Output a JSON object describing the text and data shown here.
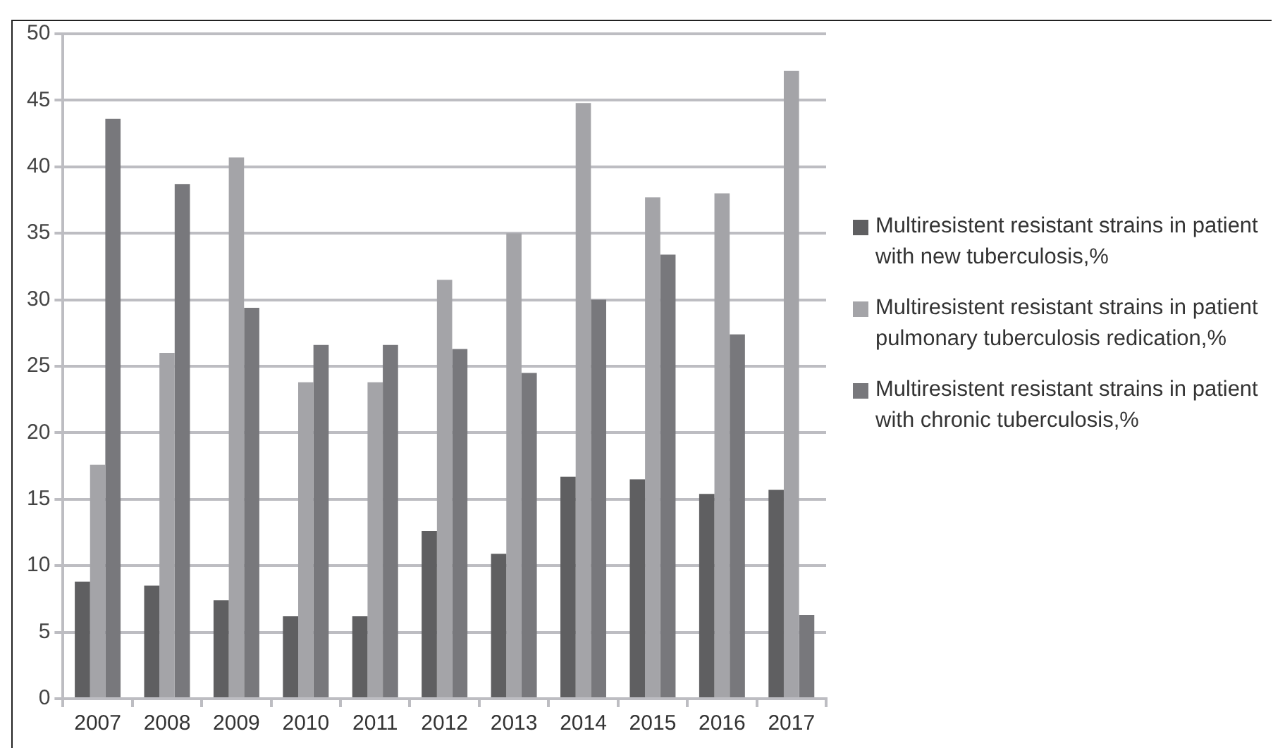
{
  "chart_data": {
    "type": "bar",
    "categories": [
      "2007",
      "2008",
      "2009",
      "2010",
      "2011",
      "2012",
      "2013",
      "2014",
      "2015",
      "2016",
      "2017"
    ],
    "series": [
      {
        "name": "Multiresistent resistant strains in patient with new tuberculosis,%",
        "color": "#5f5f61",
        "values": [
          8.8,
          8.5,
          7.4,
          6.2,
          6.2,
          12.6,
          10.9,
          16.7,
          16.5,
          15.4,
          15.7
        ]
      },
      {
        "name": "Multiresistent resistant strains in patient pulmonary tuberculosis redication,%",
        "color": "#a4a4a8",
        "values": [
          17.6,
          26.0,
          40.7,
          23.8,
          23.8,
          31.5,
          35.0,
          44.8,
          37.7,
          38.0,
          47.2
        ]
      },
      {
        "name": "Multiresistent resistant strains in patient with chronic tuberculosis,%",
        "color": "#78787c",
        "values": [
          43.6,
          38.7,
          29.4,
          26.6,
          26.6,
          26.3,
          24.5,
          30.0,
          33.4,
          27.4,
          6.3
        ]
      }
    ],
    "ylim": [
      0,
      50
    ],
    "yticks": [
      0,
      5,
      10,
      15,
      20,
      25,
      30,
      35,
      40,
      45,
      50
    ],
    "grid": "y",
    "legend": "right"
  }
}
